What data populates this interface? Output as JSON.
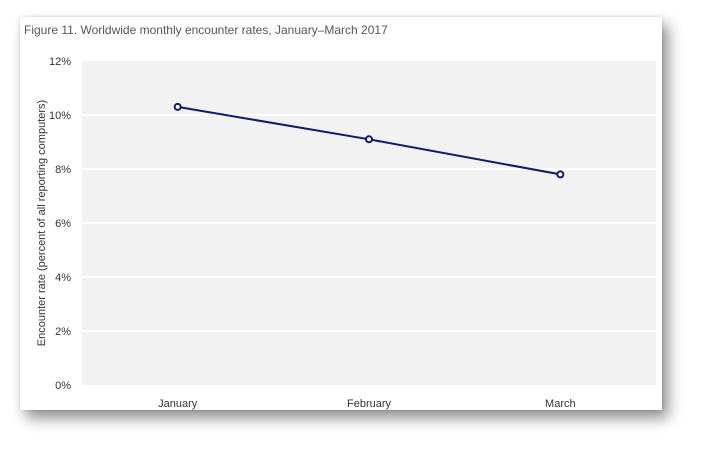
{
  "figure": {
    "title": "Figure 11. Worldwide monthly encounter rates, January–March 2017"
  },
  "chart_data": {
    "type": "line",
    "title": "Figure 11. Worldwide monthly encounter rates, January–March 2017",
    "xlabel": "",
    "ylabel": "Encounter rate (percent of all reporting computers)",
    "categories": [
      "January",
      "February",
      "March"
    ],
    "series": [
      {
        "values": [
          10.3,
          9.1,
          7.8
        ],
        "color": "#0a1a6e"
      }
    ],
    "ylim": [
      0,
      12
    ],
    "yticks": [
      0,
      2,
      4,
      6,
      8,
      10,
      12
    ],
    "ytick_labels": [
      "0%",
      "2%",
      "4%",
      "6%",
      "8%",
      "10%",
      "12%"
    ],
    "grid": true,
    "legend": "none",
    "colors": {
      "plot_background": "#f2f2f2",
      "gridline": "#ffffff",
      "line": "#0a1a6e",
      "marker_fill": "#ffffff"
    }
  }
}
